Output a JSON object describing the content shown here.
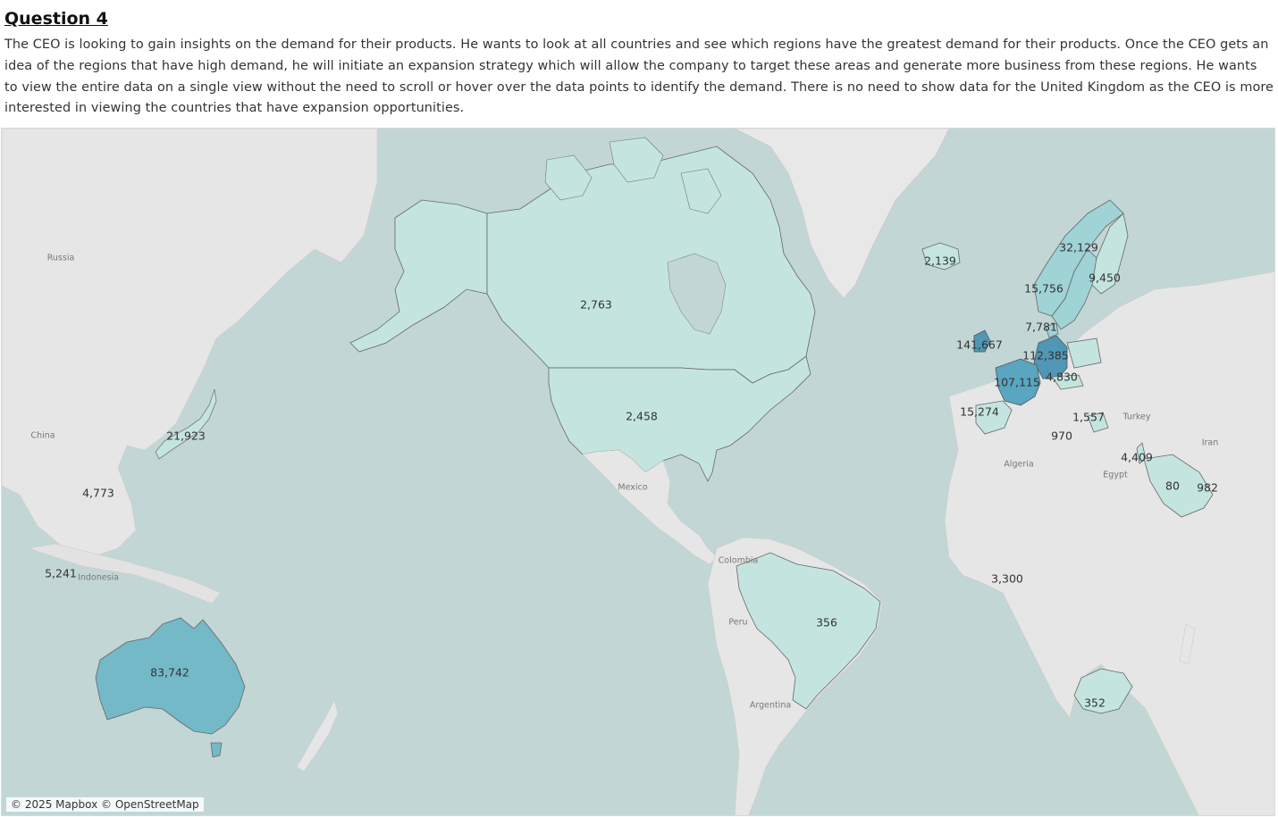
{
  "header": {
    "title": "Question 4",
    "description": "The CEO is looking to gain insights on the demand for their products. He wants to look at all countries and see which regions have the greatest demand for their products. Once the CEO gets an idea of the regions that have high demand, he will initiate an expansion strategy which will allow the company to target these areas and generate more business from these regions. He wants to view the entire data on a single view without the need to scroll or hover over the data points to identify the demand. There is no need to show data for the United Kingdom as the CEO is more interested in viewing the countries that have expansion opportunities."
  },
  "map": {
    "attribution": "© 2025 Mapbox © OpenStreetMap",
    "colors": {
      "ocean": "#c2d6d6",
      "land": "#e6e6e6",
      "low": "#c4e5df",
      "mid": "#9fd3d6",
      "high": "#74b9c8",
      "top": "#4f97b4"
    },
    "place_labels": [
      "Russia",
      "China",
      "Indonesia",
      "Mexico",
      "Colombia",
      "Peru",
      "Argentina",
      "Algeria",
      "Egypt",
      "Turkey",
      "Iran"
    ],
    "values": {
      "canada": "2,763",
      "usa": "2,458",
      "brazil": "356",
      "australia": "83,742",
      "japan": "21,923",
      "singapore": "4,773",
      "indonesia_area": "5,241",
      "iceland": "2,139",
      "norway": "32,129",
      "finland": "9,450",
      "sweden": "15,756",
      "denmark": "7,781",
      "ireland": "141,667",
      "germany": "112,385",
      "austria": "4,830",
      "france": "107,115",
      "spain": "15,274",
      "greece": "1,557",
      "malta": "970",
      "israel": "4,409",
      "saudi_arabia": "80",
      "uae": "982",
      "nigeria": "3,300",
      "south_africa": "352"
    }
  }
}
